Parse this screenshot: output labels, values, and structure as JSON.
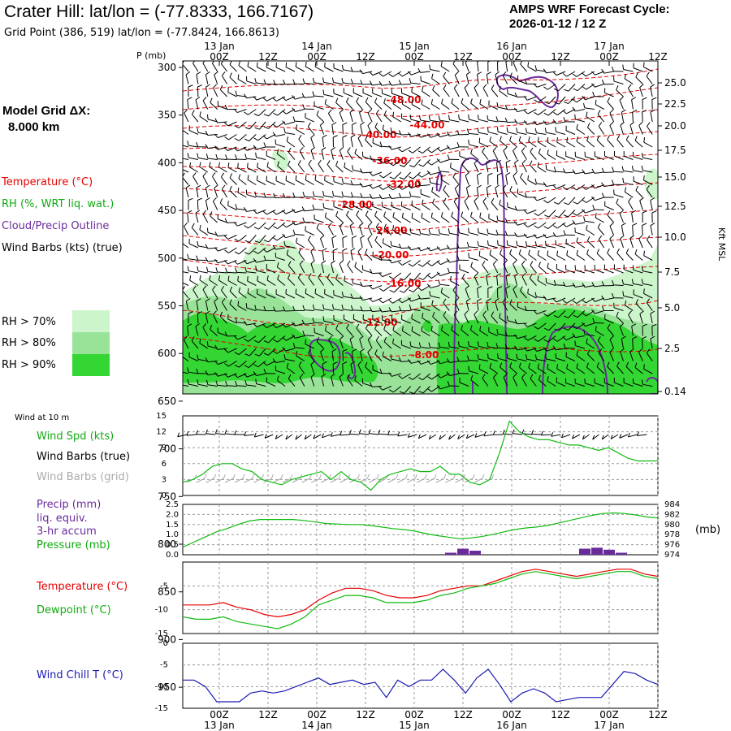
{
  "header": {
    "title": "Crater Hill:  lat/lon = (-77.8333, 166.7167)",
    "grid_point": "Grid Point (386, 519) lat/lon = (-77.8424, 166.8613)",
    "cycle_label": "AMPS WRF Forecast Cycle:",
    "cycle_value": "2026-01-12 / 12  Z"
  },
  "time_axis": {
    "hours": [
      "00Z",
      "12Z",
      "00Z",
      "12Z",
      "00Z",
      "12Z",
      "00Z",
      "12Z",
      "00Z",
      "12Z"
    ],
    "dates": [
      "13 Jan",
      "14 Jan",
      "15 Jan",
      "16 Jan",
      "17 Jan"
    ]
  },
  "sidebar": {
    "model_grid_label": "Model Grid ΔX:",
    "model_grid_value": "8.000 km",
    "temperature_legend": "Temperature (°C)",
    "rh_legend": "RH (%, WRT liq. wat.)",
    "cloud_legend": "Cloud/Precip Outline",
    "wind_legend": "Wind Barbs (kts) (true)",
    "rh_levels": [
      "RH > 70%",
      "RH > 80%",
      "RH > 90%"
    ]
  },
  "colors": {
    "rh70": "#ccf5cc",
    "rh80": "#99e399",
    "rh90": "#33d633",
    "temp": "#e60000",
    "cloud": "#6a2b9a",
    "green": "#11bb11",
    "blue": "#1a1ab4",
    "gray": "#aaaaaa",
    "purple": "#6a2b9a"
  },
  "chart_data": [
    {
      "type": "cross-section",
      "name": "vertical",
      "pressure_axis_label": "P (mb)",
      "pressure_ticks": [
        "300",
        "350",
        "400",
        "450",
        "500",
        "550",
        "600",
        "650",
        "700",
        "750",
        "800",
        "850",
        "900",
        "950"
      ],
      "kft_axis_label": "Kft MSL",
      "kft_ticks": [
        "25.0",
        "22.5",
        "20.0",
        "17.5",
        "15.0",
        "12.5",
        "10.0",
        "7.5",
        "5.0",
        "2.5",
        "0.14"
      ],
      "isotherm_labels": [
        "-48.00",
        "-44.00",
        "-40.00",
        "-36.00",
        "-32.00",
        "-28.00",
        "-24.00",
        "-20.00",
        "-16.00",
        "-12.00",
        "-8.00"
      ]
    },
    {
      "type": "line",
      "name": "wind10m",
      "panel_label": "Wind at 10 m",
      "series_label": "Wind Spd (kts)",
      "barb_true_label": "Wind Barbs (true)",
      "barb_grid_label": "Wind Barbs (grid)",
      "y_ticks": [
        "0",
        "3",
        "6",
        "9",
        "12",
        "15"
      ],
      "ylim": [
        0,
        15
      ],
      "values": [
        2.5,
        3,
        4,
        5.5,
        6,
        6,
        5,
        4.5,
        3,
        2.5,
        2,
        3,
        3.5,
        4,
        4.5,
        3,
        4.5,
        3,
        2.5,
        1,
        3,
        4,
        4.5,
        5,
        4.5,
        4.5,
        5.5,
        4,
        4,
        2.5,
        2,
        3,
        8,
        14,
        12,
        11,
        10.5,
        10.5,
        10,
        9.5,
        9.5,
        9,
        8.5,
        9,
        8,
        7,
        6.5,
        6.5,
        6.5
      ]
    },
    {
      "type": "line",
      "name": "precip_pressure",
      "precip_label": "Precip (mm)",
      "precip_label2": "liq. equiv.",
      "precip_label3": "3-hr accum",
      "pressure_label": "Pressure (mb)",
      "unit_right": "(mb)",
      "left_ticks": [
        "0.0",
        "0.5",
        "1.0",
        "1.5",
        "2.0",
        "2.5"
      ],
      "right_ticks": [
        "974",
        "976",
        "978",
        "980",
        "982",
        "984"
      ],
      "precip_ylim": [
        0,
        2.5
      ],
      "pressure_ylim": [
        974,
        984
      ],
      "pressure": [
        975.5,
        976.5,
        977.5,
        978.5,
        979.2,
        980,
        980.7,
        981,
        981,
        981,
        981,
        980.8,
        980.5,
        980.2,
        980.1,
        980,
        980,
        979.8,
        979.5,
        979.2,
        979,
        978.7,
        978.2,
        977.8,
        977.5,
        977.2,
        977.3,
        977.6,
        978,
        978.5,
        979,
        979.3,
        979.5,
        979.8,
        980.3,
        980.8,
        981.3,
        981.8,
        982.2,
        982.3,
        982.2,
        981.9,
        981.5,
        981.3
      ],
      "precip_bars": [
        {
          "t": 66,
          "v": 0.1
        },
        {
          "t": 69,
          "v": 0.3
        },
        {
          "t": 72,
          "v": 0.2
        },
        {
          "t": 99,
          "v": 0.3
        },
        {
          "t": 102,
          "v": 0.35
        },
        {
          "t": 105,
          "v": 0.25
        },
        {
          "t": 108,
          "v": 0.1
        }
      ]
    },
    {
      "type": "line",
      "name": "temperature",
      "temp_label": "Temperature (°C)",
      "dew_label": "Dewpoint (°C)",
      "y_ticks": [
        "-15",
        "-10",
        "-5"
      ],
      "ylim": [
        -15,
        0
      ],
      "temperature": [
        -9,
        -9,
        -9,
        -8.5,
        -9.5,
        -10,
        -11,
        -11.5,
        -11,
        -10,
        -8,
        -6.5,
        -5.5,
        -5.5,
        -6,
        -7,
        -7.5,
        -7.5,
        -7,
        -6,
        -5.5,
        -5,
        -5,
        -4,
        -3,
        -2,
        -1.5,
        -2,
        -2.5,
        -3,
        -2.5,
        -2,
        -1.5,
        -1.5,
        -2.5,
        -3
      ],
      "dewpoint": [
        -11.5,
        -12,
        -12,
        -11.5,
        -12.5,
        -13,
        -13.5,
        -14,
        -13,
        -11.5,
        -9,
        -8,
        -7,
        -7,
        -7.5,
        -8.5,
        -8.5,
        -8.5,
        -8,
        -7,
        -6.5,
        -5.5,
        -5,
        -4.5,
        -3.5,
        -2.5,
        -2,
        -2.5,
        -3,
        -3.5,
        -3,
        -2.5,
        -2,
        -2,
        -3,
        -3.5
      ]
    },
    {
      "type": "line",
      "name": "windchill",
      "label": "Wind Chill T (°C)",
      "y_ticks": [
        "-15",
        "-10",
        "-5",
        "0"
      ],
      "ylim": [
        -15,
        0
      ],
      "values": [
        -8.5,
        -8.5,
        -10,
        -13.5,
        -13.5,
        -13.5,
        -11.5,
        -11,
        -11.5,
        -11,
        -10,
        -9,
        -8,
        -9.5,
        -9,
        -8.5,
        -9.5,
        -9,
        -12.5,
        -8.5,
        -10,
        -8.5,
        -8.5,
        -6,
        -8.5,
        -11.5,
        -8,
        -6,
        -9.5,
        -13.5,
        -11.5,
        -10.5,
        -11.5,
        -13.5,
        -13,
        -12.5,
        -12.5,
        -12.5,
        -9.5,
        -6.5,
        -7,
        -8.5,
        -9.5
      ]
    }
  ]
}
